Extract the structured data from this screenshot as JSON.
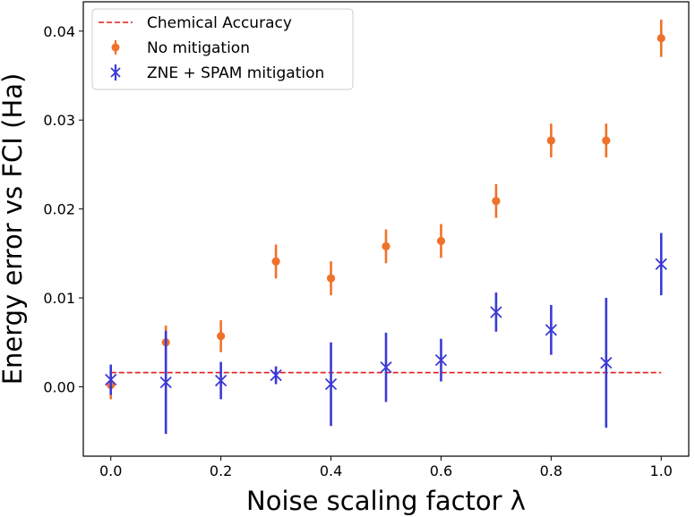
{
  "chart_data": {
    "type": "scatter",
    "title": "",
    "xlabel": "Noise scaling factor λ",
    "ylabel": "Energy error vs FCI (Ha)",
    "xlim": [
      -0.05,
      1.05
    ],
    "ylim": [
      -0.0078,
      0.0433
    ],
    "xticks": [
      0.0,
      0.2,
      0.4,
      0.6,
      0.8,
      1.0
    ],
    "xtick_labels": [
      "0.0",
      "0.2",
      "0.4",
      "0.6",
      "0.8",
      "1.0"
    ],
    "yticks": [
      0.0,
      0.01,
      0.02,
      0.03,
      0.04
    ],
    "ytick_labels": [
      "0.00",
      "0.01",
      "0.02",
      "0.03",
      "0.04"
    ],
    "grid": false,
    "legend_position": "top-left",
    "reference_line": {
      "name": "Chemical Accuracy",
      "y": 0.0016,
      "x_range": [
        0.0,
        1.0
      ],
      "color": "#e31a1c",
      "style": "dashed"
    },
    "series": [
      {
        "name": "No mitigation",
        "marker": "circle",
        "color": "#f0712a",
        "x": [
          0.0,
          0.1,
          0.2,
          0.3,
          0.4,
          0.5,
          0.6,
          0.7,
          0.8,
          0.9,
          1.0
        ],
        "y": [
          0.0002,
          0.005,
          0.0057,
          0.0141,
          0.0122,
          0.0158,
          0.0164,
          0.0209,
          0.0277,
          0.0277,
          0.0392
        ],
        "yerr": [
          0.0016,
          0.0019,
          0.0018,
          0.0019,
          0.0019,
          0.0019,
          0.0019,
          0.0019,
          0.0019,
          0.0019,
          0.0021
        ]
      },
      {
        "name": "ZNE + SPAM mitigation",
        "marker": "x",
        "color": "#3a3ad6",
        "x": [
          0.0,
          0.1,
          0.2,
          0.3,
          0.4,
          0.5,
          0.6,
          0.7,
          0.8,
          0.9,
          1.0
        ],
        "y": [
          0.0008,
          0.0005,
          0.0007,
          0.0013,
          0.0003,
          0.0022,
          0.003,
          0.0084,
          0.0064,
          0.0027,
          0.0138
        ],
        "yerr": [
          0.0017,
          0.0058,
          0.0021,
          0.001,
          0.0047,
          0.0039,
          0.0024,
          0.0022,
          0.0028,
          0.0073,
          0.0035
        ]
      }
    ]
  }
}
